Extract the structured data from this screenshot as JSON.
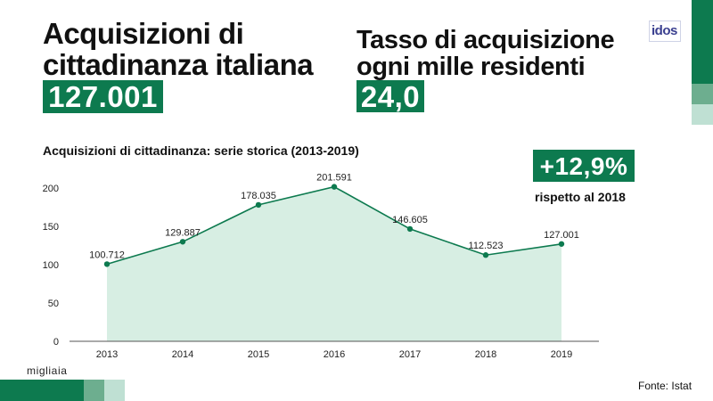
{
  "header": {
    "title_line1": "Acquisizioni di",
    "title_line2": "cittadinanza italiana",
    "total_value": "127.001",
    "rate_line1": "Tasso di acquisizione",
    "rate_line2": "ogni mille residenti",
    "rate_value": "24,0"
  },
  "logo": {
    "text": "idos"
  },
  "highlight": {
    "value": "+12,9%",
    "label": "rispetto al 2018"
  },
  "unit_label": "migliaia",
  "source": "Fonte: Istat",
  "colors": {
    "accent": "#0d7a4f",
    "accent_mid": "#6dae8f",
    "accent_light": "#bfe0d3",
    "area_fill": "#d7eee3"
  },
  "chart_data": {
    "type": "area",
    "title": "Acquisizioni di cittadinanza: serie storica (2013-2019)",
    "categories": [
      "2013",
      "2014",
      "2015",
      "2016",
      "2017",
      "2018",
      "2019"
    ],
    "values": [
      100.712,
      129.887,
      178.035,
      201.591,
      146.605,
      112.523,
      127.001
    ],
    "labels": [
      "100.712",
      "129.887",
      "178.035",
      "201.591",
      "146.605",
      "112.523",
      "127.001"
    ],
    "yticks": [
      0,
      50,
      100,
      150,
      200
    ],
    "ylim": [
      0,
      200
    ],
    "grid": false
  }
}
